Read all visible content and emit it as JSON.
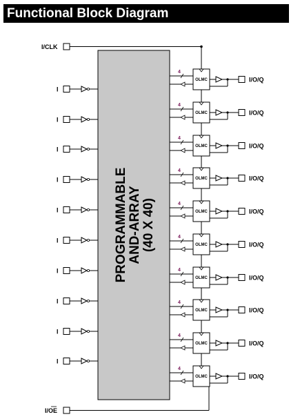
{
  "title": "Functional Block Diagram",
  "clock_label": "I/CLK",
  "oe_label": "I/OE",
  "array": {
    "line1": "PROGRAMMABLE",
    "line2": "AND-ARRAY",
    "line3": "(40 X 40)"
  },
  "inputs": [
    "I",
    "I",
    "I",
    "I",
    "I",
    "I",
    "I",
    "I",
    "I",
    "I"
  ],
  "macrocells": [
    {
      "label": "OLMC",
      "bus": "4",
      "pin": "I/O/Q"
    },
    {
      "label": "OLMC",
      "bus": "4",
      "pin": "I/O/Q"
    },
    {
      "label": "OLMC",
      "bus": "4",
      "pin": "I/O/Q"
    },
    {
      "label": "OLMC",
      "bus": "4",
      "pin": "I/O/Q"
    },
    {
      "label": "OLMC",
      "bus": "4",
      "pin": "I/O/Q"
    },
    {
      "label": "OLMC",
      "bus": "4",
      "pin": "I/O/Q"
    },
    {
      "label": "OLMC",
      "bus": "4",
      "pin": "I/O/Q"
    },
    {
      "label": "OLMC",
      "bus": "4",
      "pin": "I/O/Q"
    },
    {
      "label": "OLMC",
      "bus": "4",
      "pin": "I/O/Q"
    },
    {
      "label": "OLMC",
      "bus": "4",
      "pin": "I/O/Q"
    }
  ],
  "colors": {
    "array_fill": "#c8c8c8",
    "line": "#000000",
    "bus_label": "#7a1a5a"
  }
}
